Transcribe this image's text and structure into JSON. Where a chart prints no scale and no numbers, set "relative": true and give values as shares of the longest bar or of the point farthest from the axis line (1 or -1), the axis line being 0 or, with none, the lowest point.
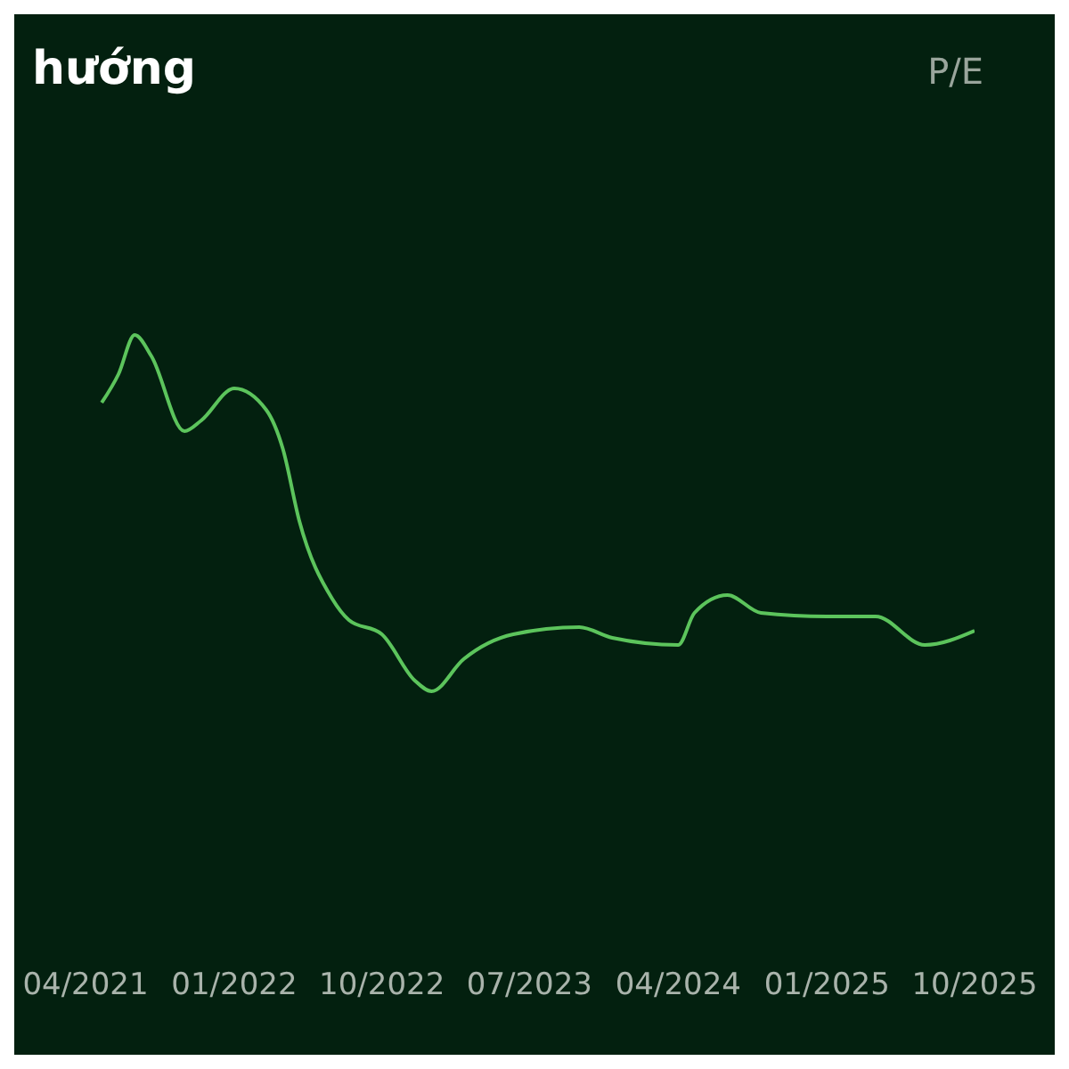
{
  "chart_data": {
    "type": "line",
    "title": "hướng",
    "annotations": [
      "P/E"
    ],
    "relative": true,
    "marker": "none",
    "x": [
      "2021-05",
      "2021-06",
      "2021-07",
      "2021-08",
      "2021-10",
      "2021-11",
      "2022-01",
      "2022-03",
      "2022-04",
      "2022-05",
      "2022-07",
      "2022-08",
      "2022-10",
      "2022-12",
      "2023-01",
      "2023-03",
      "2023-06",
      "2023-10",
      "2023-12",
      "2024-04",
      "2024-05",
      "2024-07",
      "2024-09",
      "2025-01",
      "2025-04",
      "2025-07",
      "2025-10"
    ],
    "series": [
      {
        "color": "#5cc45c",
        "values": [
          0.81,
          0.89,
          1,
          0.94,
          0.73,
          0.76,
          0.85,
          0.79,
          0.68,
          0.48,
          0.26,
          0.2,
          0.16,
          0.03,
          0,
          0.09,
          0.16,
          0.18,
          0.15,
          0.13,
          0.22,
          0.27,
          0.22,
          0.21,
          0.21,
          0.13,
          0.17
        ]
      }
    ],
    "xlim": [
      "2021-04",
      "2025-10"
    ],
    "xticks": [
      {
        "value": "2021-04",
        "label": "04/2021"
      },
      {
        "value": "2022-01",
        "label": "01/2022"
      },
      {
        "value": "2022-10",
        "label": "10/2022"
      },
      {
        "value": "2023-07",
        "label": "07/2023"
      },
      {
        "value": "2024-04",
        "label": "04/2024"
      },
      {
        "value": "2025-01",
        "label": "01/2025"
      },
      {
        "value": "2025-10",
        "label": "10/2025"
      }
    ]
  }
}
